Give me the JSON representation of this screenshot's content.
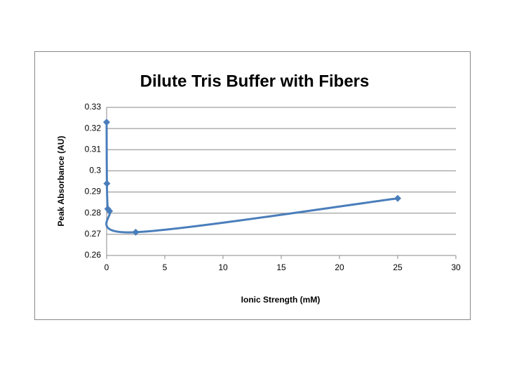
{
  "chart_data": {
    "type": "scatter",
    "title": "Dilute Tris Buffer with Fibers",
    "x_label": "Ionic Strength (mM)",
    "y_label": "Peak Absorbance (AU)",
    "series": [
      {
        "name": "Peak Absorbance",
        "color": "#4a7ebb",
        "x": [
          0,
          0.025,
          0.1,
          0.25,
          2.5,
          25
        ],
        "values": [
          0.323,
          0.294,
          0.282,
          0.281,
          0.271,
          0.287
        ]
      }
    ],
    "xlim": [
      0,
      30
    ],
    "xticks": [
      0,
      5,
      10,
      15,
      20,
      25,
      30
    ],
    "ylim": [
      0.26,
      0.33
    ],
    "yticks": [
      0.26,
      0.27,
      0.28,
      0.29,
      0.3,
      0.31,
      0.32,
      0.33
    ],
    "grid": true,
    "smooth": true
  }
}
